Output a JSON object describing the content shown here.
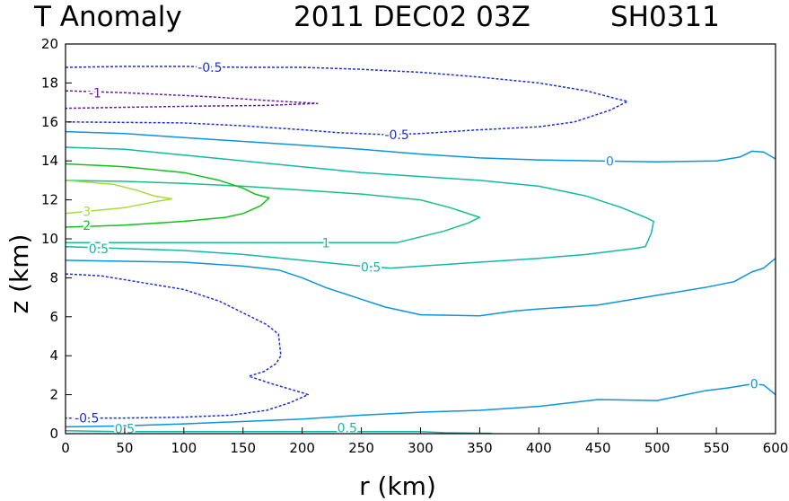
{
  "chart_data": {
    "type": "contour",
    "title": {
      "variable": "T Anomaly",
      "datetime": "2011 DEC02 03Z",
      "storm": "SH0311"
    },
    "xlabel": "r (km)",
    "ylabel": "z (km)",
    "xlim": [
      0,
      600
    ],
    "ylim": [
      0,
      20
    ],
    "xticks": [
      "0",
      "50",
      "100",
      "150",
      "200",
      "250",
      "300",
      "350",
      "400",
      "450",
      "500",
      "550",
      "600"
    ],
    "yticks": [
      "0",
      "2",
      "4",
      "6",
      "8",
      "10",
      "12",
      "14",
      "16",
      "18",
      "20"
    ],
    "colors": {
      "neg1": "#6a1aa8",
      "neg05": "#1c2fd4",
      "zero": "#0b94e0",
      "pos05": "#12b8a8",
      "pos1": "#17c08a",
      "pos2": "#10c21a",
      "pos3": "#a6dc3a"
    },
    "contours": [
      {
        "name": "neg1",
        "level": "-1",
        "style": "dashed",
        "color": "#6a1aa8",
        "points": [
          [
            0,
            17.6
          ],
          [
            50,
            17.5
          ],
          [
            120,
            17.3
          ],
          [
            170,
            17.1
          ],
          [
            213,
            16.95
          ],
          [
            170,
            16.85
          ],
          [
            100,
            16.8
          ],
          [
            50,
            16.75
          ],
          [
            0,
            16.7
          ]
        ]
      },
      {
        "name": "neg05-top",
        "level": "-0.5",
        "style": "dashed",
        "color": "#1c2fd4",
        "points": [
          [
            0,
            18.8
          ],
          [
            50,
            18.85
          ],
          [
            100,
            18.85
          ],
          [
            150,
            18.8
          ],
          [
            200,
            18.8
          ],
          [
            250,
            18.7
          ],
          [
            300,
            18.55
          ],
          [
            350,
            18.3
          ],
          [
            400,
            18.0
          ],
          [
            440,
            17.6
          ],
          [
            465,
            17.2
          ],
          [
            475,
            17.05
          ],
          [
            460,
            16.6
          ],
          [
            430,
            16.0
          ],
          [
            400,
            15.75
          ],
          [
            350,
            15.6
          ],
          [
            300,
            15.4
          ],
          [
            270,
            15.35
          ],
          [
            230,
            15.45
          ],
          [
            200,
            15.6
          ],
          [
            150,
            15.8
          ],
          [
            100,
            15.95
          ],
          [
            0,
            16.0
          ]
        ]
      },
      {
        "name": "neg05-mid",
        "level": "-0.5",
        "style": "dashed",
        "color": "#1c2fd4",
        "points": [
          [
            0,
            8.2
          ],
          [
            30,
            8.1
          ],
          [
            60,
            7.8
          ],
          [
            100,
            7.4
          ],
          [
            130,
            6.8
          ],
          [
            150,
            6.2
          ],
          [
            170,
            5.6
          ],
          [
            180,
            5.1
          ],
          [
            182,
            4.0
          ],
          [
            178,
            3.6
          ],
          [
            168,
            3.2
          ],
          [
            155,
            2.95
          ],
          [
            175,
            2.55
          ],
          [
            200,
            2.1
          ],
          [
            205,
            2.0
          ],
          [
            190,
            1.6
          ],
          [
            170,
            1.2
          ],
          [
            140,
            0.95
          ],
          [
            100,
            0.85
          ],
          [
            50,
            0.8
          ],
          [
            0,
            0.8
          ]
        ]
      },
      {
        "name": "zero-upper",
        "level": "0",
        "style": "solid",
        "color": "#0b94e0",
        "points": [
          [
            0,
            15.5
          ],
          [
            50,
            15.4
          ],
          [
            100,
            15.2
          ],
          [
            150,
            15.0
          ],
          [
            200,
            14.8
          ],
          [
            250,
            14.6
          ],
          [
            300,
            14.35
          ],
          [
            350,
            14.15
          ],
          [
            400,
            14.05
          ],
          [
            450,
            14.0
          ],
          [
            500,
            13.95
          ],
          [
            550,
            14.0
          ],
          [
            570,
            14.2
          ],
          [
            580,
            14.5
          ],
          [
            590,
            14.45
          ],
          [
            600,
            14.1
          ]
        ]
      },
      {
        "name": "zero-middle",
        "level": "0",
        "style": "solid",
        "color": "#0b94e0",
        "points": [
          [
            0,
            8.9
          ],
          [
            50,
            8.85
          ],
          [
            100,
            8.8
          ],
          [
            150,
            8.6
          ],
          [
            180,
            8.4
          ],
          [
            200,
            8.0
          ],
          [
            220,
            7.5
          ],
          [
            250,
            6.9
          ],
          [
            270,
            6.5
          ],
          [
            300,
            6.1
          ],
          [
            350,
            6.05
          ],
          [
            380,
            6.3
          ],
          [
            400,
            6.4
          ],
          [
            450,
            6.6
          ],
          [
            500,
            7.1
          ],
          [
            540,
            7.5
          ],
          [
            565,
            7.8
          ],
          [
            580,
            8.3
          ],
          [
            590,
            8.5
          ],
          [
            600,
            9.0
          ]
        ]
      },
      {
        "name": "zero-lower",
        "level": "0",
        "style": "solid",
        "color": "#0b94e0",
        "points": [
          [
            0,
            0.35
          ],
          [
            50,
            0.4
          ],
          [
            100,
            0.5
          ],
          [
            200,
            0.75
          ],
          [
            250,
            0.95
          ],
          [
            300,
            1.1
          ],
          [
            350,
            1.2
          ],
          [
            400,
            1.4
          ],
          [
            450,
            1.75
          ],
          [
            500,
            1.7
          ],
          [
            540,
            2.2
          ],
          [
            560,
            2.35
          ],
          [
            580,
            2.55
          ],
          [
            590,
            2.5
          ],
          [
            600,
            2.0
          ]
        ]
      },
      {
        "name": "pos05-upper",
        "level": "0.5",
        "style": "solid",
        "color": "#12b8a8",
        "points": [
          [
            0,
            14.7
          ],
          [
            50,
            14.6
          ],
          [
            100,
            14.3
          ],
          [
            150,
            14.0
          ],
          [
            200,
            13.7
          ],
          [
            250,
            13.4
          ],
          [
            300,
            13.2
          ],
          [
            350,
            13.0
          ],
          [
            400,
            12.7
          ],
          [
            440,
            12.2
          ],
          [
            470,
            11.6
          ],
          [
            490,
            11.1
          ],
          [
            497,
            10.9
          ],
          [
            495,
            10.3
          ],
          [
            490,
            9.6
          ],
          [
            480,
            9.5
          ],
          [
            440,
            9.2
          ],
          [
            400,
            9.0
          ],
          [
            350,
            8.8
          ],
          [
            300,
            8.6
          ],
          [
            275,
            8.5
          ],
          [
            250,
            8.6
          ],
          [
            200,
            8.9
          ],
          [
            150,
            9.2
          ],
          [
            100,
            9.4
          ],
          [
            50,
            9.5
          ],
          [
            0,
            9.6
          ]
        ]
      },
      {
        "name": "pos05-lower",
        "level": "0.5",
        "style": "solid",
        "color": "#12b8a8",
        "points": [
          [
            0,
            0.15
          ],
          [
            50,
            0.1
          ],
          [
            100,
            0.1
          ],
          [
            150,
            0.1
          ],
          [
            200,
            0.1
          ],
          [
            250,
            0.1
          ],
          [
            300,
            0.1
          ],
          [
            320,
            0.05
          ],
          [
            360,
            0.02
          ]
        ]
      },
      {
        "name": "pos1",
        "level": "1",
        "style": "solid",
        "color": "#17c08a",
        "points": [
          [
            0,
            13.0
          ],
          [
            50,
            12.95
          ],
          [
            100,
            12.85
          ],
          [
            150,
            12.7
          ],
          [
            200,
            12.5
          ],
          [
            250,
            12.3
          ],
          [
            300,
            12.0
          ],
          [
            325,
            11.6
          ],
          [
            350,
            11.1
          ],
          [
            340,
            10.8
          ],
          [
            320,
            10.4
          ],
          [
            300,
            10.1
          ],
          [
            280,
            9.8
          ],
          [
            250,
            9.8
          ],
          [
            200,
            9.8
          ],
          [
            150,
            9.8
          ],
          [
            100,
            9.8
          ],
          [
            50,
            9.8
          ],
          [
            0,
            9.8
          ]
        ]
      },
      {
        "name": "pos2",
        "level": "2",
        "style": "solid",
        "color": "#10c21a",
        "points": [
          [
            0,
            13.85
          ],
          [
            50,
            13.7
          ],
          [
            100,
            13.4
          ],
          [
            130,
            13.0
          ],
          [
            150,
            12.6
          ],
          [
            160,
            12.3
          ],
          [
            172,
            12.1
          ],
          [
            165,
            11.7
          ],
          [
            150,
            11.3
          ],
          [
            135,
            11.1
          ],
          [
            100,
            10.9
          ],
          [
            50,
            10.7
          ],
          [
            0,
            10.6
          ]
        ]
      },
      {
        "name": "pos3",
        "level": "3",
        "style": "solid",
        "color": "#a6dc3a",
        "points": [
          [
            0,
            13.0
          ],
          [
            40,
            12.8
          ],
          [
            60,
            12.5
          ],
          [
            75,
            12.2
          ],
          [
            90,
            12.05
          ],
          [
            75,
            11.9
          ],
          [
            50,
            11.6
          ],
          [
            25,
            11.45
          ],
          [
            0,
            11.3
          ]
        ]
      }
    ],
    "contour_labels": [
      {
        "text": "-0.5",
        "x": 122,
        "y": 18.8,
        "color": "#1c2fd4"
      },
      {
        "text": "-1",
        "x": 25,
        "y": 17.5,
        "color": "#6a1aa8"
      },
      {
        "text": "-0.5",
        "x": 280,
        "y": 15.35,
        "color": "#1c2fd4"
      },
      {
        "text": "0",
        "x": 460,
        "y": 13.98,
        "color": "#0b94e0"
      },
      {
        "text": "3",
        "x": 18,
        "y": 11.4,
        "color": "#a6dc3a"
      },
      {
        "text": "2",
        "x": 18,
        "y": 10.7,
        "color": "#10c21a"
      },
      {
        "text": "1",
        "x": 220,
        "y": 9.8,
        "color": "#17c08a"
      },
      {
        "text": "0.5",
        "x": 28,
        "y": 9.5,
        "color": "#12b8a8"
      },
      {
        "text": "0.5",
        "x": 258,
        "y": 8.55,
        "color": "#12b8a8"
      },
      {
        "text": "0",
        "x": 582,
        "y": 2.55,
        "color": "#0b94e0"
      },
      {
        "text": "-0.5",
        "x": 18,
        "y": 0.8,
        "color": "#1c2fd4"
      },
      {
        "text": "0.5",
        "x": 50,
        "y": 0.25,
        "color": "#12b8a8"
      },
      {
        "text": "0.5",
        "x": 238,
        "y": 0.3,
        "color": "#12b8a8"
      }
    ]
  }
}
